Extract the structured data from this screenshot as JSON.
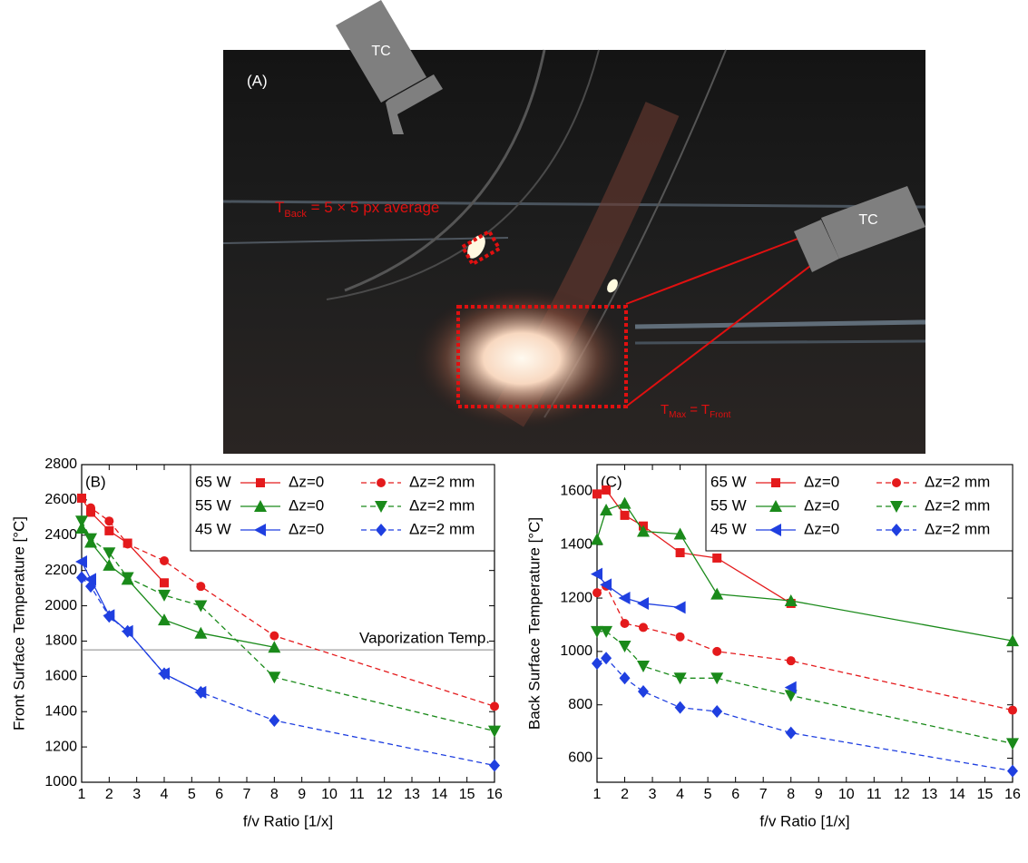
{
  "photo_panel": {
    "panel_label": "(A)",
    "tc_top": "TC",
    "tc_right": "TC",
    "t_back": {
      "base": "T",
      "sub": "Back",
      "rest": " = 5 × 5 px average"
    },
    "t_front": {
      "base": "T",
      "sub": "Max",
      "mid": " = T",
      "sub2": "Front"
    }
  },
  "chart_data": [
    {
      "type": "line",
      "panel_label": "(B)",
      "xlabel": "f/v Ratio [1/x]",
      "ylabel": "Front Surface Temperature [°C]",
      "xlim": [
        1,
        16
      ],
      "xticks": [
        1,
        2,
        3,
        4,
        5,
        6,
        7,
        8,
        9,
        10,
        11,
        12,
        13,
        14,
        15,
        16
      ],
      "ylim": [
        1000,
        2800
      ],
      "yticks": [
        1000,
        1200,
        1400,
        1600,
        1800,
        2000,
        2200,
        2400,
        2600,
        2800
      ],
      "hline": {
        "value": 1750,
        "label": "Vaporization Temp."
      },
      "legend_groups": [
        "65 W",
        "55 W",
        "45 W"
      ],
      "series": [
        {
          "name": "Δz=0",
          "color": "#e41a1c",
          "marker": "square",
          "dashed": false,
          "x": [
            1,
            1.33,
            2,
            2.67,
            4
          ],
          "values": [
            2610,
            2530,
            2425,
            2355,
            2130
          ]
        },
        {
          "name": "Δz=2 mm",
          "color": "#e41a1c",
          "marker": "circle",
          "dashed": true,
          "x": [
            1,
            1.33,
            2,
            2.67,
            4,
            5.33,
            8,
            16
          ],
          "values": [
            2610,
            2555,
            2480,
            2350,
            2255,
            2110,
            1830,
            1430
          ]
        },
        {
          "name": "Δz=0",
          "color": "#1a8a1a",
          "marker": "triangle-up",
          "dashed": false,
          "x": [
            1,
            1.33,
            2,
            2.67,
            4,
            5.33,
            8
          ],
          "values": [
            2440,
            2360,
            2230,
            2150,
            1920,
            1845,
            1765
          ]
        },
        {
          "name": "Δz=2 mm",
          "color": "#1a8a1a",
          "marker": "triangle-down",
          "dashed": true,
          "x": [
            1,
            1.33,
            2,
            2.67,
            4,
            5.33,
            8,
            16
          ],
          "values": [
            2480,
            2380,
            2300,
            2160,
            2060,
            2000,
            1595,
            1290
          ]
        },
        {
          "name": "Δz=0",
          "color": "#1f3fe0",
          "marker": "triangle-left",
          "dashed": false,
          "x": [
            1,
            1.33,
            2,
            2.67,
            4,
            5.33
          ],
          "values": [
            2250,
            2150,
            1945,
            1855,
            1615,
            1510
          ]
        },
        {
          "name": "Δz=2 mm",
          "color": "#1f3fe0",
          "marker": "diamond",
          "dashed": true,
          "x": [
            1,
            1.33,
            2,
            2.67,
            4,
            5.33,
            8,
            16
          ],
          "values": [
            2160,
            2110,
            1940,
            1855,
            1615,
            1510,
            1350,
            1095
          ]
        }
      ]
    },
    {
      "type": "line",
      "panel_label": "(C)",
      "xlabel": "f/v Ratio [1/x]",
      "ylabel": "Back Surface Temperature [°C]",
      "xlim": [
        1,
        16
      ],
      "xticks": [
        1,
        2,
        3,
        4,
        5,
        6,
        7,
        8,
        9,
        10,
        11,
        12,
        13,
        14,
        15,
        16
      ],
      "ylim": [
        510,
        1700
      ],
      "yticks": [
        600,
        800,
        1000,
        1200,
        1400,
        1600
      ],
      "legend_groups": [
        "65 W",
        "55 W",
        "45 W"
      ],
      "series": [
        {
          "name": "Δz=0",
          "color": "#e41a1c",
          "marker": "square",
          "dashed": false,
          "x": [
            1,
            1.33,
            2,
            2.67,
            4,
            5.33,
            8
          ],
          "values": [
            1590,
            1605,
            1510,
            1470,
            1370,
            1350,
            1180
          ]
        },
        {
          "name": "Δz=2 mm",
          "color": "#e41a1c",
          "marker": "circle",
          "dashed": true,
          "x": [
            1,
            1.33,
            2,
            2.67,
            4,
            5.33,
            8,
            16
          ],
          "values": [
            1220,
            1245,
            1105,
            1090,
            1055,
            1000,
            965,
            780
          ]
        },
        {
          "name": "Δz=0",
          "color": "#1a8a1a",
          "marker": "triangle-up",
          "dashed": false,
          "x": [
            1,
            1.33,
            2,
            2.67,
            4,
            5.33,
            8,
            16
          ],
          "values": [
            1420,
            1530,
            1555,
            1450,
            1440,
            1215,
            1190,
            1040
          ]
        },
        {
          "name": "Δz=2 mm",
          "color": "#1a8a1a",
          "marker": "triangle-down",
          "dashed": true,
          "x": [
            1,
            1.33,
            2,
            2.67,
            4,
            5.33,
            8,
            16
          ],
          "values": [
            1075,
            1075,
            1020,
            945,
            900,
            900,
            835,
            655
          ]
        },
        {
          "name": "Δz=0",
          "color": "#1f3fe0",
          "marker": "triangle-left",
          "dashed": false,
          "x": [
            1,
            1.33,
            2,
            2.67,
            4,
            5.33,
            8
          ],
          "values": [
            1290,
            1250,
            1200,
            1180,
            1165,
            null,
            865
          ]
        },
        {
          "name": "Δz=2 mm",
          "color": "#1f3fe0",
          "marker": "diamond",
          "dashed": true,
          "x": [
            1,
            1.33,
            2,
            2.67,
            4,
            5.33,
            8,
            16
          ],
          "values": [
            955,
            975,
            900,
            850,
            790,
            775,
            695,
            552
          ]
        }
      ]
    }
  ]
}
